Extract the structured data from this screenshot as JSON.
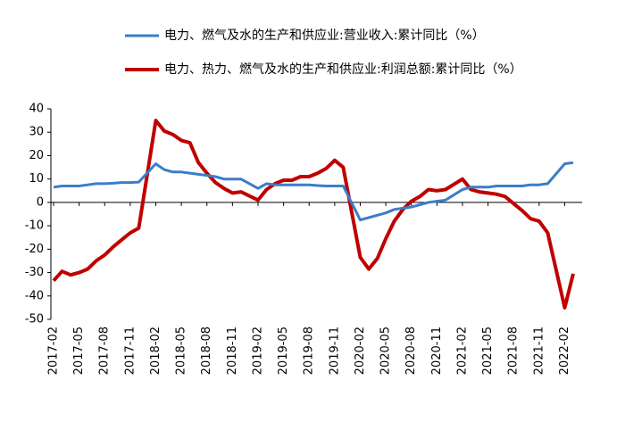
{
  "chart_data": {
    "type": "line",
    "x": [
      "2017-02",
      "2017-03",
      "2017-04",
      "2017-05",
      "2017-06",
      "2017-07",
      "2017-08",
      "2017-09",
      "2017-10",
      "2017-11",
      "2017-12",
      "2018-02",
      "2018-03",
      "2018-04",
      "2018-05",
      "2018-06",
      "2018-07",
      "2018-08",
      "2018-09",
      "2018-10",
      "2018-11",
      "2018-12",
      "2019-02",
      "2019-03",
      "2019-04",
      "2019-05",
      "2019-06",
      "2019-07",
      "2019-08",
      "2019-09",
      "2019-10",
      "2019-11",
      "2019-12",
      "2020-02",
      "2020-03",
      "2020-04",
      "2020-05",
      "2020-06",
      "2020-07",
      "2020-08",
      "2020-09",
      "2020-10",
      "2020-11",
      "2020-12",
      "2021-02",
      "2021-03",
      "2021-04",
      "2021-05",
      "2021-06",
      "2021-07",
      "2021-08",
      "2021-09",
      "2021-10",
      "2021-11",
      "2021-12",
      "2022-02",
      "2022-03"
    ],
    "series": [
      {
        "name": "电力、燃气及水的生产和供应业:营业收入:累计同比（%）",
        "color": "#3a7dc9",
        "values": [
          6.5,
          7,
          7,
          7,
          7.5,
          8,
          8,
          8.2,
          8.5,
          8.5,
          8.7,
          16.5,
          14,
          13,
          13,
          12.5,
          12,
          11.5,
          11,
          10,
          10,
          10,
          6,
          8,
          7.5,
          7.5,
          7.5,
          7.5,
          7.5,
          7.2,
          7,
          7,
          7,
          -7.5,
          -6.5,
          -5.5,
          -4.5,
          -3,
          -2.5,
          -2,
          -1,
          0,
          0.5,
          1,
          5.5,
          6.5,
          6.5,
          6.5,
          7,
          7,
          7,
          7,
          7.5,
          7.5,
          8,
          16.5,
          17
        ]
      },
      {
        "name": "电力、热力、燃气及水的生产和供应业:利润总额:累计同比（%）",
        "color": "#c00000",
        "values": [
          -33.5,
          -29.5,
          -31,
          -30,
          -28.5,
          -25,
          -22.5,
          -19,
          -16,
          -13,
          -11,
          35,
          30.5,
          29,
          26.5,
          25.5,
          17,
          12.5,
          8.5,
          6,
          4,
          4.5,
          1,
          5.5,
          8,
          9.5,
          9.5,
          11,
          11,
          12.5,
          14.5,
          18,
          15,
          -23.5,
          -28.5,
          -24,
          -15.5,
          -8,
          -3,
          0.5,
          2.5,
          5.5,
          5,
          5.5,
          10,
          5.5,
          4.5,
          4,
          3.5,
          2.5,
          -0.5,
          -3.5,
          -7,
          -8,
          -13,
          -45,
          -30.5
        ]
      }
    ],
    "ylim": [
      -50,
      40
    ],
    "yticks": [
      -50,
      -40,
      -30,
      -20,
      -10,
      0,
      10,
      20,
      30,
      40
    ],
    "xticks": [
      "2017-02",
      "2017-05",
      "2017-08",
      "2017-11",
      "2018-02",
      "2018-05",
      "2018-08",
      "2018-11",
      "2019-02",
      "2019-05",
      "2019-08",
      "2019-11",
      "2020-02",
      "2020-05",
      "2020-08",
      "2020-11",
      "2021-02",
      "2021-05",
      "2021-08",
      "2021-11",
      "2022-02"
    ]
  }
}
